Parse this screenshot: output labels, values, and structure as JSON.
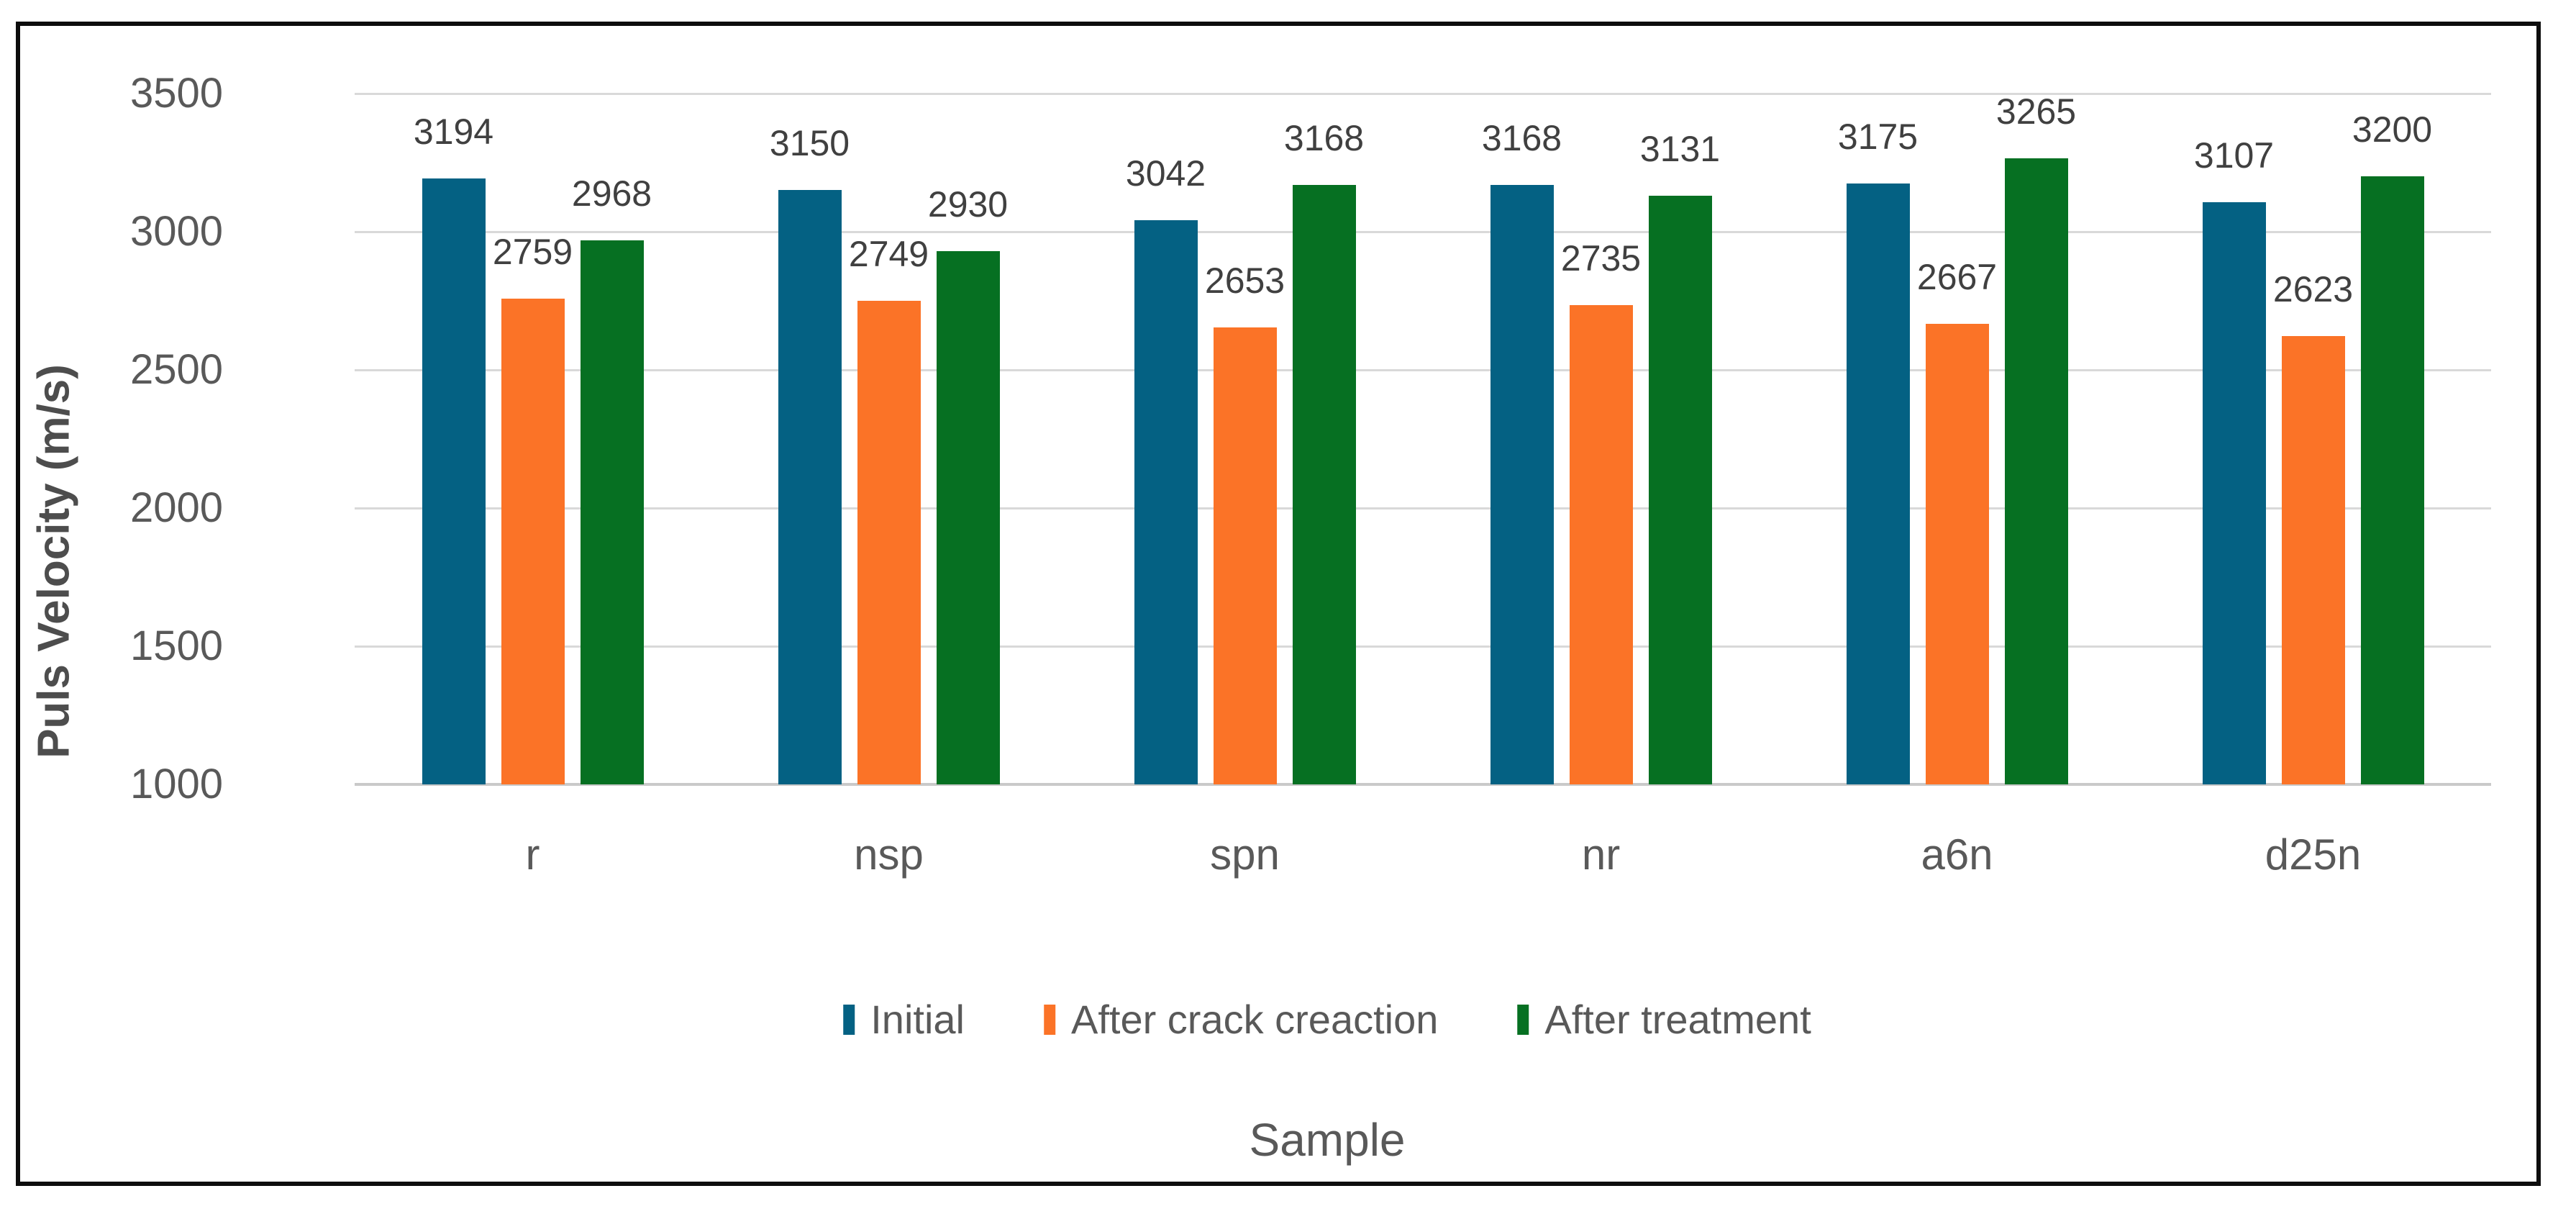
{
  "chart_data": {
    "type": "bar",
    "title": "",
    "categories": [
      "r",
      "nsp",
      "spn",
      "nr",
      "a6n",
      "d25n"
    ],
    "series": [
      {
        "name": "Initial",
        "color": "#046183",
        "values": [
          3194,
          3150,
          3042,
          3168,
          3175,
          3107
        ]
      },
      {
        "name": "After crack creaction",
        "color": "#fb7327",
        "values": [
          2759,
          2749,
          2653,
          2735,
          2667,
          2623
        ]
      },
      {
        "name": "After treatment",
        "color": "#067022",
        "values": [
          2968,
          2930,
          3168,
          3131,
          3265,
          3200
        ]
      }
    ],
    "xlabel": "Sample",
    "ylabel": "Puls Velocity (m/s)",
    "ylim": [
      1000,
      3500
    ],
    "yticks": [
      3500,
      3000,
      2500,
      2000,
      1500,
      1000
    ],
    "grid": true,
    "legend_position": "bottom",
    "data_labels": true
  },
  "colors": {
    "gridline": "#d9d9d9",
    "axis_line": "#c9c9c9",
    "tick_label": "#595959",
    "data_label": "#404040",
    "axis_title": "#595959",
    "frame_border": "#0d0d0d",
    "background": "#ffffff"
  }
}
